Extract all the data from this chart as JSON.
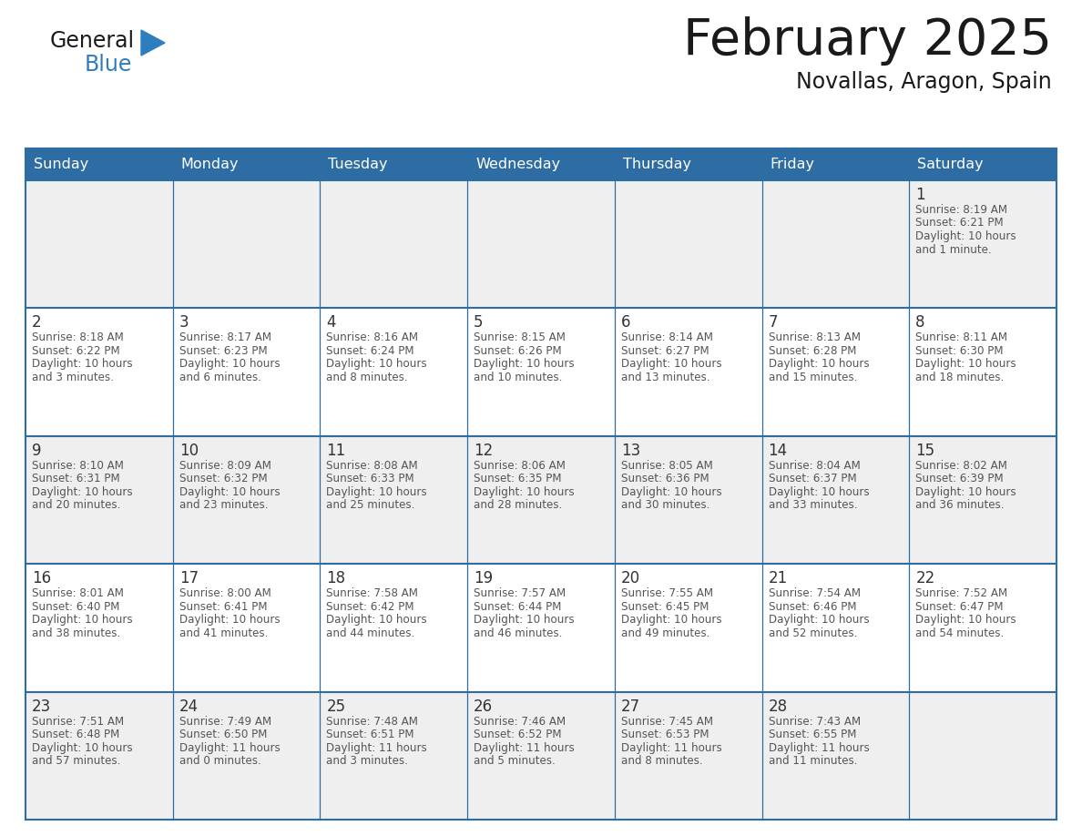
{
  "title": "February 2025",
  "subtitle": "Novallas, Aragon, Spain",
  "header_bg_color": "#2E6DA4",
  "header_text_color": "#FFFFFF",
  "day_names": [
    "Sunday",
    "Monday",
    "Tuesday",
    "Wednesday",
    "Thursday",
    "Friday",
    "Saturday"
  ],
  "bg_color": "#FFFFFF",
  "cell_bg_light": "#EFEFEF",
  "cell_bg_white": "#FFFFFF",
  "border_color": "#2E6DA4",
  "day_num_color": "#333333",
  "text_color": "#555555",
  "title_color": "#1a1a1a",
  "logo_general_color": "#1a1a1a",
  "logo_blue_color": "#2E7DBF",
  "calendar_data": [
    [
      null,
      null,
      null,
      null,
      null,
      null,
      {
        "day": 1,
        "sunrise": "8:19 AM",
        "sunset": "6:21 PM",
        "daylight": "10 hours and 1 minute."
      }
    ],
    [
      {
        "day": 2,
        "sunrise": "8:18 AM",
        "sunset": "6:22 PM",
        "daylight": "10 hours and 3 minutes."
      },
      {
        "day": 3,
        "sunrise": "8:17 AM",
        "sunset": "6:23 PM",
        "daylight": "10 hours and 6 minutes."
      },
      {
        "day": 4,
        "sunrise": "8:16 AM",
        "sunset": "6:24 PM",
        "daylight": "10 hours and 8 minutes."
      },
      {
        "day": 5,
        "sunrise": "8:15 AM",
        "sunset": "6:26 PM",
        "daylight": "10 hours and 10 minutes."
      },
      {
        "day": 6,
        "sunrise": "8:14 AM",
        "sunset": "6:27 PM",
        "daylight": "10 hours and 13 minutes."
      },
      {
        "day": 7,
        "sunrise": "8:13 AM",
        "sunset": "6:28 PM",
        "daylight": "10 hours and 15 minutes."
      },
      {
        "day": 8,
        "sunrise": "8:11 AM",
        "sunset": "6:30 PM",
        "daylight": "10 hours and 18 minutes."
      }
    ],
    [
      {
        "day": 9,
        "sunrise": "8:10 AM",
        "sunset": "6:31 PM",
        "daylight": "10 hours and 20 minutes."
      },
      {
        "day": 10,
        "sunrise": "8:09 AM",
        "sunset": "6:32 PM",
        "daylight": "10 hours and 23 minutes."
      },
      {
        "day": 11,
        "sunrise": "8:08 AM",
        "sunset": "6:33 PM",
        "daylight": "10 hours and 25 minutes."
      },
      {
        "day": 12,
        "sunrise": "8:06 AM",
        "sunset": "6:35 PM",
        "daylight": "10 hours and 28 minutes."
      },
      {
        "day": 13,
        "sunrise": "8:05 AM",
        "sunset": "6:36 PM",
        "daylight": "10 hours and 30 minutes."
      },
      {
        "day": 14,
        "sunrise": "8:04 AM",
        "sunset": "6:37 PM",
        "daylight": "10 hours and 33 minutes."
      },
      {
        "day": 15,
        "sunrise": "8:02 AM",
        "sunset": "6:39 PM",
        "daylight": "10 hours and 36 minutes."
      }
    ],
    [
      {
        "day": 16,
        "sunrise": "8:01 AM",
        "sunset": "6:40 PM",
        "daylight": "10 hours and 38 minutes."
      },
      {
        "day": 17,
        "sunrise": "8:00 AM",
        "sunset": "6:41 PM",
        "daylight": "10 hours and 41 minutes."
      },
      {
        "day": 18,
        "sunrise": "7:58 AM",
        "sunset": "6:42 PM",
        "daylight": "10 hours and 44 minutes."
      },
      {
        "day": 19,
        "sunrise": "7:57 AM",
        "sunset": "6:44 PM",
        "daylight": "10 hours and 46 minutes."
      },
      {
        "day": 20,
        "sunrise": "7:55 AM",
        "sunset": "6:45 PM",
        "daylight": "10 hours and 49 minutes."
      },
      {
        "day": 21,
        "sunrise": "7:54 AM",
        "sunset": "6:46 PM",
        "daylight": "10 hours and 52 minutes."
      },
      {
        "day": 22,
        "sunrise": "7:52 AM",
        "sunset": "6:47 PM",
        "daylight": "10 hours and 54 minutes."
      }
    ],
    [
      {
        "day": 23,
        "sunrise": "7:51 AM",
        "sunset": "6:48 PM",
        "daylight": "10 hours and 57 minutes."
      },
      {
        "day": 24,
        "sunrise": "7:49 AM",
        "sunset": "6:50 PM",
        "daylight": "11 hours and 0 minutes."
      },
      {
        "day": 25,
        "sunrise": "7:48 AM",
        "sunset": "6:51 PM",
        "daylight": "11 hours and 3 minutes."
      },
      {
        "day": 26,
        "sunrise": "7:46 AM",
        "sunset": "6:52 PM",
        "daylight": "11 hours and 5 minutes."
      },
      {
        "day": 27,
        "sunrise": "7:45 AM",
        "sunset": "6:53 PM",
        "daylight": "11 hours and 8 minutes."
      },
      {
        "day": 28,
        "sunrise": "7:43 AM",
        "sunset": "6:55 PM",
        "daylight": "11 hours and 11 minutes."
      },
      null
    ]
  ]
}
